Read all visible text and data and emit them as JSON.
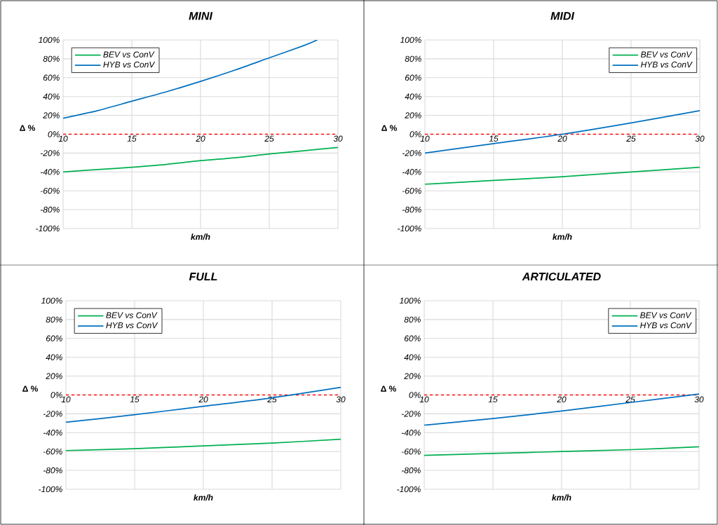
{
  "chart_data": [
    {
      "type": "line",
      "title": "MINI",
      "xlabel": "km/h",
      "ylabel": "Δ %",
      "series": [
        {
          "name": "BEV vs ConV",
          "color": "#00b050",
          "x": [
            10,
            12.5,
            15,
            17.5,
            20,
            22.5,
            25,
            27.5,
            30
          ],
          "values": [
            -40,
            -37.5,
            -35,
            -32,
            -28,
            -25,
            -21,
            -17.5,
            -14
          ]
        },
        {
          "name": "HYB vs ConV",
          "color": "#0070c0",
          "x": [
            10,
            12.5,
            15,
            17.5,
            20,
            22.5,
            25,
            27.5,
            28.5
          ],
          "values": [
            17,
            25,
            35,
            45,
            56,
            68,
            81,
            94,
            100
          ]
        }
      ],
      "xlim": [
        10,
        30
      ],
      "ylim": [
        -100,
        100
      ],
      "xticks": [
        10,
        15,
        20,
        25,
        30
      ],
      "yticks": [
        {
          "value": -100,
          "label": "-100%"
        },
        {
          "value": -80,
          "label": "-80%"
        },
        {
          "value": -60,
          "label": "-60%"
        },
        {
          "value": -40,
          "label": "-40%"
        },
        {
          "value": -20,
          "label": "-20%"
        },
        {
          "value": 0,
          "label": "0%"
        },
        {
          "value": 20,
          "label": "20%"
        },
        {
          "value": 40,
          "label": "40%"
        },
        {
          "value": 60,
          "label": "60%"
        },
        {
          "value": 80,
          "label": "80%"
        },
        {
          "value": 100,
          "label": "100%"
        }
      ],
      "ref_lines": [
        {
          "axis": "y",
          "value": 0,
          "color": "#ff0000",
          "line_style": "dashed"
        }
      ],
      "grid": true,
      "legend": "top left"
    },
    {
      "type": "line",
      "title": "MIDI",
      "xlabel": "km/h",
      "ylabel": "Δ %",
      "series": [
        {
          "name": "BEV vs ConV",
          "color": "#00b050",
          "x": [
            10,
            15,
            20,
            25,
            30
          ],
          "values": [
            -53,
            -49,
            -45,
            -40,
            -35
          ]
        },
        {
          "name": "HYB vs ConV",
          "color": "#0070c0",
          "x": [
            10,
            15,
            20,
            25,
            30
          ],
          "values": [
            -20,
            -10,
            0,
            12,
            25
          ]
        }
      ],
      "xlim": [
        10,
        30
      ],
      "ylim": [
        -100,
        100
      ],
      "xticks": [
        10,
        15,
        20,
        25,
        30
      ],
      "yticks": [
        {
          "value": -100,
          "label": "-100%"
        },
        {
          "value": -80,
          "label": "-80%"
        },
        {
          "value": -60,
          "label": "-60%"
        },
        {
          "value": -40,
          "label": "-40%"
        },
        {
          "value": -20,
          "label": "-20%"
        },
        {
          "value": 0,
          "label": "0%"
        },
        {
          "value": 20,
          "label": "20%"
        },
        {
          "value": 40,
          "label": "40%"
        },
        {
          "value": 60,
          "label": "60%"
        },
        {
          "value": 80,
          "label": "80%"
        },
        {
          "value": 100,
          "label": "100%"
        }
      ],
      "ref_lines": [
        {
          "axis": "y",
          "value": 0,
          "color": "#ff0000",
          "line_style": "dashed"
        }
      ],
      "grid": true,
      "legend": "top right"
    },
    {
      "type": "line",
      "title": "FULL",
      "xlabel": "km/h",
      "ylabel": "Δ %",
      "series": [
        {
          "name": "BEV vs ConV",
          "color": "#00b050",
          "x": [
            10,
            15,
            20,
            25,
            30
          ],
          "values": [
            -59,
            -57,
            -54,
            -51,
            -47
          ]
        },
        {
          "name": "HYB vs ConV",
          "color": "#0070c0",
          "x": [
            10,
            15,
            20,
            25,
            30
          ],
          "values": [
            -29,
            -21,
            -12,
            -3,
            8
          ]
        }
      ],
      "xlim": [
        10,
        30
      ],
      "ylim": [
        -100,
        100
      ],
      "xticks": [
        10,
        15,
        20,
        25,
        30
      ],
      "yticks": [
        {
          "value": -100,
          "label": "-100%"
        },
        {
          "value": -80,
          "label": "-80%"
        },
        {
          "value": -60,
          "label": "-60%"
        },
        {
          "value": -40,
          "label": "-40%"
        },
        {
          "value": -20,
          "label": "-20%"
        },
        {
          "value": 0,
          "label": "0%"
        },
        {
          "value": 20,
          "label": "20%"
        },
        {
          "value": 40,
          "label": "40%"
        },
        {
          "value": 60,
          "label": "60%"
        },
        {
          "value": 80,
          "label": "80%"
        },
        {
          "value": 100,
          "label": "100%"
        }
      ],
      "ref_lines": [
        {
          "axis": "y",
          "value": 0,
          "color": "#ff0000",
          "line_style": "dashed"
        }
      ],
      "grid": true,
      "legend": "top left"
    },
    {
      "type": "line",
      "title": "ARTICULATED",
      "xlabel": "km/h",
      "ylabel": "Δ %",
      "series": [
        {
          "name": "BEV vs ConV",
          "color": "#00b050",
          "x": [
            10,
            15,
            20,
            25,
            30
          ],
          "values": [
            -64,
            -62,
            -60,
            -58,
            -55
          ]
        },
        {
          "name": "HYB vs ConV",
          "color": "#0070c0",
          "x": [
            10,
            15,
            20,
            25,
            30
          ],
          "values": [
            -32,
            -25,
            -17,
            -8,
            1
          ]
        }
      ],
      "xlim": [
        10,
        30
      ],
      "ylim": [
        -100,
        100
      ],
      "xticks": [
        10,
        15,
        20,
        25,
        30
      ],
      "yticks": [
        {
          "value": -100,
          "label": "-100%"
        },
        {
          "value": -80,
          "label": "-80%"
        },
        {
          "value": -60,
          "label": "-60%"
        },
        {
          "value": -40,
          "label": "-40%"
        },
        {
          "value": -20,
          "label": "-20%"
        },
        {
          "value": 0,
          "label": "0%"
        },
        {
          "value": 20,
          "label": "20%"
        },
        {
          "value": 40,
          "label": "40%"
        },
        {
          "value": 60,
          "label": "60%"
        },
        {
          "value": 80,
          "label": "80%"
        },
        {
          "value": 100,
          "label": "100%"
        }
      ],
      "ref_lines": [
        {
          "axis": "y",
          "value": 0,
          "color": "#ff0000",
          "line_style": "dashed"
        }
      ],
      "grid": true,
      "legend": "top right"
    }
  ]
}
